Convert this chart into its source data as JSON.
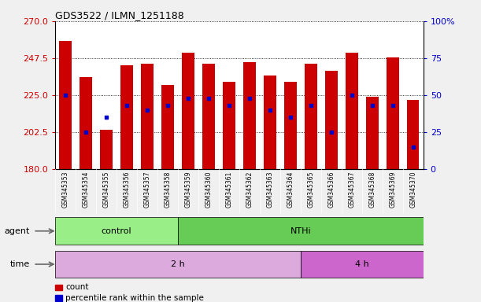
{
  "title": "GDS3522 / ILMN_1251188",
  "samples": [
    "GSM345353",
    "GSM345354",
    "GSM345355",
    "GSM345356",
    "GSM345357",
    "GSM345358",
    "GSM345359",
    "GSM345360",
    "GSM345361",
    "GSM345362",
    "GSM345363",
    "GSM345364",
    "GSM345365",
    "GSM345366",
    "GSM345367",
    "GSM345368",
    "GSM345369",
    "GSM345370"
  ],
  "bar_tops": [
    258,
    236,
    204,
    243,
    244,
    231,
    251,
    244,
    233,
    245,
    237,
    233,
    244,
    240,
    251,
    224,
    248,
    222
  ],
  "blue_pct": [
    50,
    25,
    35,
    43,
    40,
    43,
    48,
    48,
    43,
    48,
    40,
    35,
    43,
    25,
    50,
    43,
    43,
    15
  ],
  "ylim": [
    180,
    270
  ],
  "yticks": [
    180,
    202.5,
    225,
    247.5,
    270
  ],
  "y2ticks": [
    0,
    25,
    50,
    75,
    100
  ],
  "bar_color": "#cc0000",
  "blue_color": "#0000cc",
  "agent_groups": [
    {
      "label": "control",
      "start": 0,
      "end": 6,
      "color": "#99ee88"
    },
    {
      "label": "NTHi",
      "start": 6,
      "end": 18,
      "color": "#66cc55"
    }
  ],
  "time_groups": [
    {
      "label": "2 h",
      "start": 0,
      "end": 12,
      "color": "#ddaadd"
    },
    {
      "label": "4 h",
      "start": 12,
      "end": 18,
      "color": "#cc66cc"
    }
  ],
  "agent_label": "agent",
  "time_label": "time",
  "legend_count": "count",
  "legend_pct": "percentile rank within the sample",
  "bg_color": "#f0f0f0",
  "plot_bg": "#ffffff",
  "xtick_bg": "#d8d8d8"
}
